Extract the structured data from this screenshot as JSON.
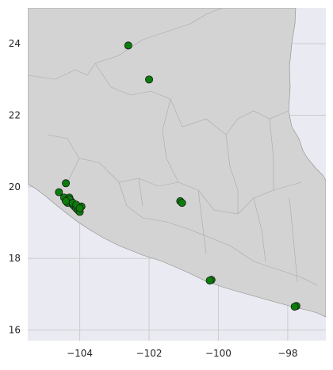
{
  "chart_data": {
    "type": "scatter",
    "title": "",
    "xlabel": "",
    "ylabel": "",
    "xlim": [
      -105.5,
      -96.9
    ],
    "ylim": [
      15.7,
      25.0
    ],
    "x_ticks": [
      -104,
      -102,
      -100,
      -98
    ],
    "x_tick_labels": [
      "−104",
      "−102",
      "−100",
      "−98"
    ],
    "y_ticks": [
      16,
      18,
      20,
      22,
      24
    ],
    "y_tick_labels": [
      "16",
      "18",
      "20",
      "22",
      "24"
    ],
    "grid": true,
    "background": "#eaeaf2",
    "land_color": "#d3d3d3",
    "point_color": "#0a7d0a",
    "series": [
      {
        "x": [
          -102.6,
          -102.0,
          -104.4,
          -104.6,
          -104.45,
          -104.3,
          -104.25,
          -104.35,
          -104.2,
          -104.15,
          -104.1,
          -104.05,
          -104.0,
          -103.95,
          -104.3,
          -104.2,
          -104.4,
          -104.1,
          -104.0,
          -101.1,
          -101.05,
          -100.2,
          -100.25,
          -97.75,
          -97.8
        ],
        "y": [
          23.95,
          23.0,
          20.1,
          19.85,
          19.7,
          19.7,
          19.6,
          19.55,
          19.5,
          19.45,
          19.4,
          19.35,
          19.3,
          19.45,
          19.65,
          19.55,
          19.6,
          19.5,
          19.4,
          19.6,
          19.55,
          17.4,
          17.38,
          16.67,
          16.65
        ]
      }
    ]
  }
}
